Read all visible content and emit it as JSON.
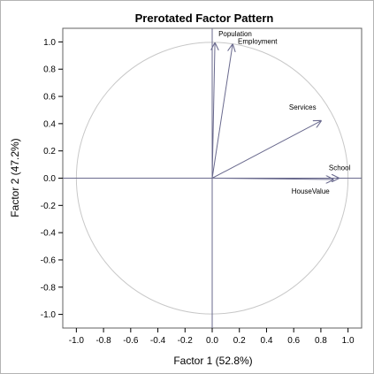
{
  "chart_data": {
    "type": "scatter",
    "title": "Prerotated Factor Pattern",
    "xlabel": "Factor 1 (52.8%)",
    "ylabel": "Factor 2 (47.2%)",
    "xlim": [
      -1.1,
      1.1
    ],
    "ylim": [
      -1.1,
      1.1
    ],
    "xticks": [
      "-1.0",
      "-0.8",
      "-0.6",
      "-0.4",
      "-0.2",
      "0.0",
      "0.2",
      "0.4",
      "0.6",
      "0.8",
      "1.0"
    ],
    "yticks": [
      "-1.0",
      "-0.8",
      "-0.6",
      "-0.4",
      "-0.2",
      "0.0",
      "0.2",
      "0.4",
      "0.6",
      "0.8",
      "1.0"
    ],
    "unit_circle": true,
    "grid": false,
    "vectors": [
      {
        "name": "Population",
        "x": 0.02,
        "y": 0.99
      },
      {
        "name": "Employment",
        "x": 0.15,
        "y": 0.98
      },
      {
        "name": "Services",
        "x": 0.8,
        "y": 0.42
      },
      {
        "name": "School",
        "x": 0.93,
        "y": 0.0
      },
      {
        "name": "HouseValue",
        "x": 0.89,
        "y": -0.01
      }
    ],
    "colors": {
      "vector": "#6a6a8e",
      "circle": "#c8c8c8",
      "axis_line": "#6a6a8e",
      "frame": "#606060"
    }
  }
}
